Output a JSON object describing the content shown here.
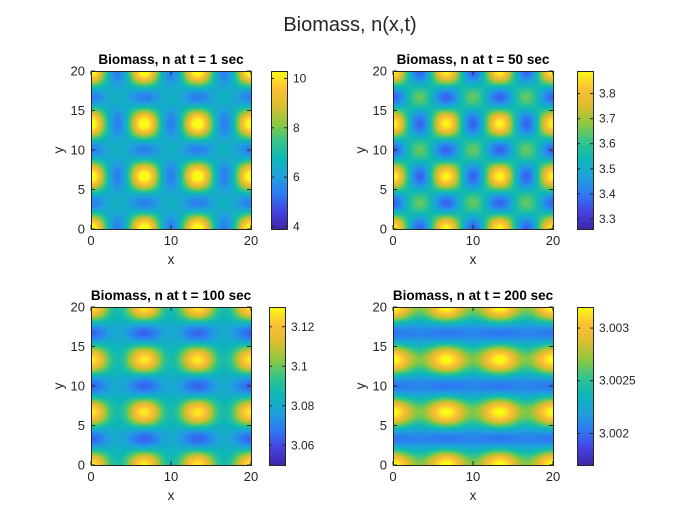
{
  "figure": {
    "title": "Biomass, n(x,t)",
    "colormap": "parula",
    "colormap_stops": [
      "#3e26a8",
      "#4543e2",
      "#2d7bf2",
      "#1fa1dc",
      "#0db7b7",
      "#35c48b",
      "#8dc83e",
      "#dcbd31",
      "#fcc035",
      "#f9fb15"
    ],
    "frame_color": "#262626"
  },
  "chart_data": [
    {
      "type": "heatmap",
      "title": "Biomass, n at t = 1 sec",
      "xlabel": "x",
      "ylabel": "y",
      "xlim": [
        0,
        20
      ],
      "ylim": [
        0,
        20
      ],
      "xticks": [
        0,
        10,
        20
      ],
      "yticks": [
        0,
        5,
        10,
        15,
        20
      ],
      "field": {
        "offset": 7.0,
        "amp_x": 1.0,
        "amp_y": 1.0,
        "amp_cross": 1.6,
        "period_x": 6.67,
        "period_y": 6.67
      },
      "clim": [
        3.9,
        10.3
      ],
      "colorbar_ticks": [
        4,
        6,
        8,
        10
      ],
      "colorbar_tick_labels": [
        "4",
        "6",
        "8",
        "10"
      ]
    },
    {
      "type": "heatmap",
      "title": "Biomass, n at t = 50 sec",
      "xlabel": "x",
      "ylabel": "y",
      "xlim": [
        0,
        20
      ],
      "ylim": [
        0,
        20
      ],
      "xticks": [
        0,
        10,
        20
      ],
      "yticks": [
        0,
        5,
        10,
        15,
        20
      ],
      "field": {
        "offset": 3.57,
        "amp_x": 0.06,
        "amp_y": 0.06,
        "amp_cross": 0.2,
        "period_x": 6.67,
        "period_y": 6.67
      },
      "clim": [
        3.26,
        3.89
      ],
      "colorbar_ticks": [
        3.3,
        3.4,
        3.5,
        3.6,
        3.7,
        3.8
      ],
      "colorbar_tick_labels": [
        "3.3",
        "3.4",
        "3.5",
        "3.6",
        "3.7",
        "3.8"
      ]
    },
    {
      "type": "heatmap",
      "title": "Biomass, n at t = 100 sec",
      "xlabel": "x",
      "ylabel": "y",
      "xlim": [
        0,
        20
      ],
      "ylim": [
        0,
        20
      ],
      "xticks": [
        0,
        10,
        20
      ],
      "yticks": [
        0,
        5,
        10,
        15,
        20
      ],
      "field": {
        "offset": 3.09,
        "amp_x": 0.006,
        "amp_y": 0.018,
        "amp_cross": 0.014,
        "period_x": 6.67,
        "period_y": 6.67
      },
      "clim": [
        3.05,
        3.13
      ],
      "colorbar_ticks": [
        3.06,
        3.08,
        3.1,
        3.12
      ],
      "colorbar_tick_labels": [
        "3.06",
        "3.08",
        "3.1",
        "3.12"
      ]
    },
    {
      "type": "heatmap",
      "title": "Biomass, n at t = 200 sec",
      "xlabel": "x",
      "ylabel": "y",
      "xlim": [
        0,
        20
      ],
      "ylim": [
        0,
        20
      ],
      "xticks": [
        0,
        10,
        20
      ],
      "yticks": [
        0,
        5,
        10,
        15,
        20
      ],
      "field": {
        "offset": 3.0025,
        "amp_x": 0.00012,
        "amp_y": 0.00045,
        "amp_cross": 0.00015,
        "period_x": 6.67,
        "period_y": 6.67
      },
      "clim": [
        3.0017,
        3.0032
      ],
      "colorbar_ticks": [
        3.002,
        3.0025,
        3.003
      ],
      "colorbar_tick_labels": [
        "3.002",
        "3.0025",
        "3.003"
      ]
    }
  ]
}
